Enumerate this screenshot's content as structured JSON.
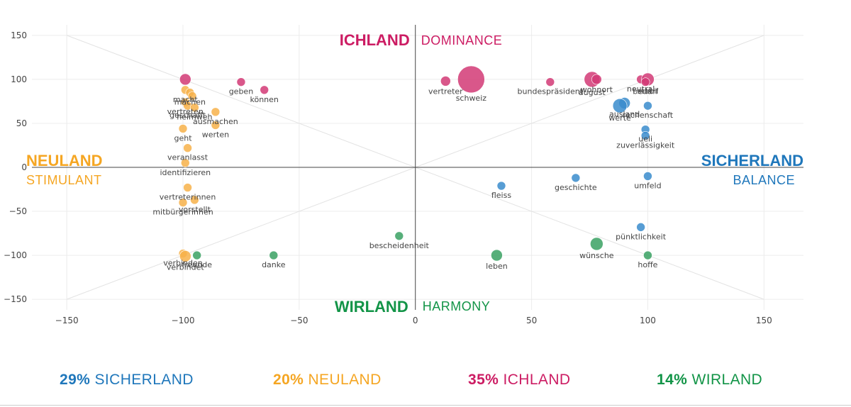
{
  "chart_data": {
    "type": "scatter",
    "title": "",
    "xlabel": "",
    "ylabel": "",
    "xlim": [
      -165,
      167
    ],
    "ylim": [
      -162,
      162
    ],
    "xticks": [
      -150,
      -100,
      -50,
      0,
      50,
      100,
      150
    ],
    "yticks": [
      150,
      100,
      50,
      0,
      -50,
      -100,
      -150
    ],
    "grid": true,
    "quadrants": {
      "top": {
        "title": "ICHLAND",
        "subtitle": "DOMINANCE",
        "color": "#cc1c63"
      },
      "right": {
        "title": "SICHERLAND",
        "subtitle": "BALANCE",
        "color": "#1f77bb"
      },
      "left": {
        "title": "NEULAND",
        "subtitle": "STIMULANT",
        "color": "#f5a623"
      },
      "bottom": {
        "title": "WIRLAND",
        "subtitle": "HARMONY",
        "color": "#129447"
      }
    },
    "series": [
      {
        "group": "ichland",
        "color": "#d23a75",
        "points": [
          {
            "x": -99,
            "y": 100,
            "r": 8,
            "label": ""
          },
          {
            "x": -75,
            "y": 97,
            "r": 6,
            "label": "geben"
          },
          {
            "x": -65,
            "y": 88,
            "r": 6,
            "label": "können"
          },
          {
            "x": 13,
            "y": 98,
            "r": 7,
            "label": "vertreter"
          },
          {
            "x": 24,
            "y": 100,
            "r": 19,
            "label": "schweiz"
          },
          {
            "x": 58,
            "y": 97,
            "r": 6,
            "label": "bundespräsident"
          },
          {
            "x": 76,
            "y": 100,
            "r": 11,
            "label": "august"
          },
          {
            "x": 78,
            "y": 100,
            "r": 7,
            "label": "wohnort"
          },
          {
            "x": 97,
            "y": 100,
            "r": 6,
            "label": "neutral"
          },
          {
            "x": 100,
            "y": 100,
            "r": 9,
            "label": "stabil"
          },
          {
            "x": 99,
            "y": 97,
            "r": 6,
            "label": "bedarf"
          }
        ]
      },
      {
        "group": "sicherland",
        "color": "#3a8ccc",
        "points": [
          {
            "x": 90,
            "y": 73,
            "r": 8,
            "label": "ausland"
          },
          {
            "x": 88,
            "y": 70,
            "r": 10,
            "label": "werte"
          },
          {
            "x": 100,
            "y": 70,
            "r": 6,
            "label": "rechenschaft"
          },
          {
            "x": 99,
            "y": 43,
            "r": 6,
            "label": "ueli"
          },
          {
            "x": 99,
            "y": 36,
            "r": 6,
            "label": "zuverlässigkeit"
          },
          {
            "x": 100,
            "y": -10,
            "r": 6,
            "label": "umfeld"
          },
          {
            "x": 69,
            "y": -12,
            "r": 6,
            "label": "geschichte"
          },
          {
            "x": 37,
            "y": -21,
            "r": 6,
            "label": "fleiss"
          },
          {
            "x": 97,
            "y": -68,
            "r": 6,
            "label": "pünktlichkeit"
          }
        ]
      },
      {
        "group": "neuland",
        "color": "#f7b24a",
        "points": [
          {
            "x": -99,
            "y": 88,
            "r": 6,
            "label": "macht"
          },
          {
            "x": -97,
            "y": 85,
            "r": 6,
            "label": "machen"
          },
          {
            "x": -96,
            "y": 81,
            "r": 6,
            "label": ""
          },
          {
            "x": -99,
            "y": 74,
            "r": 6,
            "label": "vertreten"
          },
          {
            "x": -98,
            "y": 70,
            "r": 6,
            "label": "geschafft"
          },
          {
            "x": -95,
            "y": 68,
            "r": 6,
            "label": "heimweh"
          },
          {
            "x": -86,
            "y": 63,
            "r": 6,
            "label": "ausmachen"
          },
          {
            "x": -86,
            "y": 48,
            "r": 6,
            "label": "werten"
          },
          {
            "x": -100,
            "y": 44,
            "r": 6,
            "label": "geht"
          },
          {
            "x": -98,
            "y": 22,
            "r": 6,
            "label": "veranlasst"
          },
          {
            "x": -99,
            "y": 5,
            "r": 6,
            "label": "identifizieren"
          },
          {
            "x": -98,
            "y": -23,
            "r": 6,
            "label": "vertreterinnen"
          },
          {
            "x": -95,
            "y": -37,
            "r": 6,
            "label": "vorstellt"
          },
          {
            "x": -100,
            "y": -40,
            "r": 6,
            "label": "mitbürgerinnen"
          },
          {
            "x": -100,
            "y": -98,
            "r": 6,
            "label": "verbinden"
          },
          {
            "x": -99,
            "y": -101,
            "r": 8,
            "label": "verbindet"
          }
        ]
      },
      {
        "group": "wirland",
        "color": "#3aa163",
        "points": [
          {
            "x": -94,
            "y": -100,
            "r": 6,
            "label": "freunde"
          },
          {
            "x": -61,
            "y": -100,
            "r": 6,
            "label": "danke"
          },
          {
            "x": -7,
            "y": -78,
            "r": 6,
            "label": "bescheidenheit"
          },
          {
            "x": 35,
            "y": -100,
            "r": 8,
            "label": "leben"
          },
          {
            "x": 78,
            "y": -87,
            "r": 9,
            "label": "wünsche"
          },
          {
            "x": 100,
            "y": -100,
            "r": 6,
            "label": "hoffe"
          }
        ]
      }
    ]
  },
  "summary": [
    {
      "pct": "29%",
      "name": "SICHERLAND",
      "color": "#1f77bb"
    },
    {
      "pct": "20%",
      "name": "NEULAND",
      "color": "#f5a623"
    },
    {
      "pct": "35%",
      "name": "ICHLAND",
      "color": "#cc1c63"
    },
    {
      "pct": "14%",
      "name": "WIRLAND",
      "color": "#129447"
    }
  ]
}
